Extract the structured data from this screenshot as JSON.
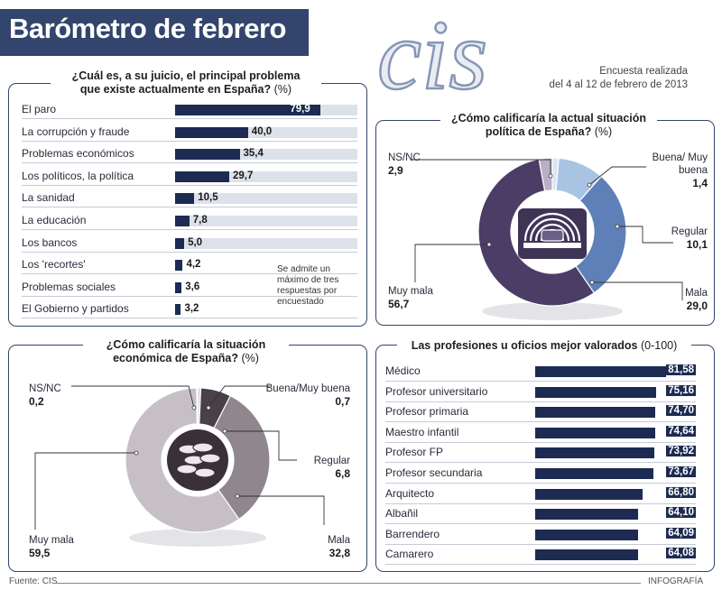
{
  "header": {
    "title": "Barómetro de febrero",
    "logo_text": "cis"
  },
  "survey_note": {
    "line1": "Encuesta realizada",
    "line2": "del 4 al 12 de febrero de 2013"
  },
  "colors": {
    "navy": "#1d2b52",
    "panel_border": "#33456c",
    "purple_dark": "#4b3d66",
    "purple_light": "#b9afc6",
    "blue_mid": "#5f7fb8",
    "blue_light": "#a9c4e3",
    "grey_dark": "#4a4048",
    "grey_mid": "#8f868e",
    "grey_light": "#c6c0c6"
  },
  "problems": {
    "title_line1": "¿Cuál es, a su juicio, el principal problema",
    "title_line2": "que existe actualmente en España?",
    "title_unit": "(%)",
    "note": "Se admite un máximo de tres respuestas por encuestado"
  },
  "political": {
    "title_line1": "¿Cómo calificaría la actual situación",
    "title_line2": "política de España?",
    "title_unit": "(%)"
  },
  "economic": {
    "title_line1": "¿Cómo calificaría la situación",
    "title_line2": "económica de España?",
    "title_unit": "(%)"
  },
  "professions": {
    "title": "Las profesiones u oficios mejor valorados",
    "title_unit": "(0-100)"
  },
  "footer": {
    "source": "Fuente: CIS",
    "credit": "INFOGRAFÍA"
  },
  "chart_data": [
    {
      "type": "bar",
      "categories": [
        "El paro",
        "La corrupción y fraude",
        "Problemas económicos",
        "Los políticos, la política",
        "La sanidad",
        "La educación",
        "Los bancos",
        "Los 'recortes'",
        "Problemas sociales",
        "El Gobierno y partidos"
      ],
      "values": [
        79.9,
        40.0,
        35.4,
        29.7,
        10.5,
        7.8,
        5.0,
        4.2,
        3.6,
        3.2
      ],
      "value_labels": [
        "79,9",
        "40,0",
        "35,4",
        "29,7",
        "10,5",
        "7,8",
        "5,0",
        "4,2",
        "3,6",
        "3,2"
      ],
      "xlim": [
        0,
        100
      ]
    },
    {
      "type": "pie",
      "labels": [
        "Buena/ Muy buena",
        "Regular",
        "Mala",
        "Muy mala",
        "NS/NC"
      ],
      "values": [
        1.4,
        10.1,
        29.0,
        56.7,
        2.9
      ],
      "value_labels": [
        "1,4",
        "10,1",
        "29,0",
        "56,7",
        "2,9"
      ],
      "colors": [
        "#d9e6f3",
        "#a9c4e3",
        "#5f7fb8",
        "#4b3d66",
        "#b9afc6"
      ]
    },
    {
      "type": "pie",
      "labels": [
        "Buena/Muy buena",
        "Regular",
        "Mala",
        "Muy mala",
        "NS/NC"
      ],
      "values": [
        0.7,
        6.8,
        32.8,
        59.5,
        0.2
      ],
      "value_labels": [
        "0,7",
        "6,8",
        "32,8",
        "59,5",
        "0,2"
      ],
      "colors": [
        "#d9d3d9",
        "#4a4048",
        "#8f868e",
        "#c6c0c6",
        "#eeeaee"
      ]
    },
    {
      "type": "bar",
      "categories": [
        "Médico",
        "Profesor universitario",
        "Profesor primaria",
        "Maestro infantil",
        "Profesor FP",
        "Profesor secundaria",
        "Arquitecto",
        "Albañil",
        "Barrendero",
        "Camarero"
      ],
      "values": [
        81.58,
        75.16,
        74.7,
        74.64,
        73.92,
        73.67,
        66.8,
        64.1,
        64.09,
        64.08
      ],
      "value_labels": [
        "81,58",
        "75,16",
        "74,70",
        "74,64",
        "73,92",
        "73,67",
        "66,80",
        "64,10",
        "64,09",
        "64,08"
      ],
      "xlim": [
        0,
        100
      ]
    }
  ]
}
